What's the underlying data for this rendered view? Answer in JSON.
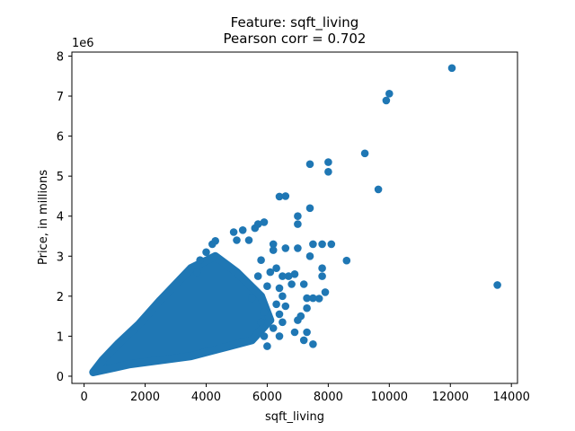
{
  "chart_data": {
    "type": "scatter",
    "title": "Feature: sqft_living",
    "subtitle": "Pearson corr = 0.702",
    "xlabel": "sqft_living",
    "ylabel": "Price, in millions",
    "y_offset_label": "1e6",
    "xlim": [
      -400,
      14200
    ],
    "ylim": [
      -180000,
      8100000
    ],
    "x_ticks": [
      0,
      2000,
      4000,
      6000,
      8000,
      10000,
      12000,
      14000
    ],
    "x_tick_labels": [
      "0",
      "2000",
      "4000",
      "6000",
      "8000",
      "10000",
      "12000",
      "14000"
    ],
    "y_ticks": [
      0,
      1000000,
      2000000,
      3000000,
      4000000,
      5000000,
      6000000,
      7000000,
      8000000
    ],
    "y_tick_labels": [
      "0",
      "1",
      "2",
      "3",
      "4",
      "5",
      "6",
      "7",
      "8"
    ],
    "grid": false,
    "point_color": "#1f77b4",
    "dense_region": [
      [
        300,
        100000
      ],
      [
        900,
        200000
      ],
      [
        1500,
        300000
      ],
      [
        2500,
        400000
      ],
      [
        3500,
        500000
      ],
      [
        4500,
        700000
      ],
      [
        5500,
        900000
      ],
      [
        6100,
        1400000
      ],
      [
        5800,
        2000000
      ],
      [
        5000,
        2600000
      ],
      [
        4300,
        3000000
      ],
      [
        3500,
        2700000
      ],
      [
        2500,
        1900000
      ],
      [
        1800,
        1300000
      ],
      [
        1100,
        800000
      ],
      [
        600,
        400000
      ]
    ],
    "outliers": [
      [
        12050,
        7700000
      ],
      [
        10000,
        7060000
      ],
      [
        9900,
        6890000
      ],
      [
        13540,
        2280000
      ],
      [
        9200,
        5570000
      ],
      [
        9640,
        4670000
      ],
      [
        8000,
        5350000
      ],
      [
        8000,
        5110000
      ],
      [
        7400,
        5300000
      ],
      [
        7400,
        4200000
      ],
      [
        6400,
        4490000
      ],
      [
        6600,
        4500000
      ],
      [
        7000,
        4000000
      ],
      [
        7000,
        3800000
      ],
      [
        8600,
        2890000
      ],
      [
        7800,
        3300000
      ],
      [
        8100,
        3300000
      ],
      [
        7800,
        2700000
      ],
      [
        7800,
        2500000
      ],
      [
        7900,
        2100000
      ],
      [
        7700,
        1940000
      ],
      [
        7500,
        1950000
      ],
      [
        7300,
        1950000
      ],
      [
        7300,
        1700000
      ],
      [
        7100,
        1500000
      ],
      [
        7000,
        3200000
      ],
      [
        6900,
        2550000
      ],
      [
        6700,
        2500000
      ],
      [
        6500,
        2500000
      ],
      [
        6800,
        2300000
      ],
      [
        7400,
        3000000
      ],
      [
        6600,
        3200000
      ],
      [
        6200,
        3300000
      ],
      [
        6200,
        3150000
      ],
      [
        6500,
        2000000
      ],
      [
        6900,
        1100000
      ],
      [
        7300,
        1100000
      ],
      [
        7500,
        800000
      ],
      [
        7200,
        900000
      ],
      [
        6500,
        1350000
      ],
      [
        6400,
        1550000
      ],
      [
        7500,
        3300000
      ],
      [
        7200,
        2300000
      ],
      [
        7000,
        1400000
      ],
      [
        5900,
        3850000
      ],
      [
        5700,
        3800000
      ],
      [
        5600,
        3700000
      ],
      [
        5200,
        3650000
      ],
      [
        4900,
        3600000
      ],
      [
        5000,
        3400000
      ],
      [
        5400,
        3400000
      ],
      [
        4300,
        3380000
      ],
      [
        4200,
        3300000
      ],
      [
        4000,
        3100000
      ],
      [
        3800,
        2900000
      ],
      [
        6400,
        2200000
      ],
      [
        6300,
        2700000
      ],
      [
        6100,
        2600000
      ],
      [
        6000,
        2250000
      ],
      [
        6300,
        1800000
      ],
      [
        6600,
        1750000
      ],
      [
        6400,
        1000000
      ],
      [
        6000,
        750000
      ],
      [
        5900,
        1000000
      ],
      [
        5500,
        1950000
      ],
      [
        5800,
        1350000
      ],
      [
        5900,
        1600000
      ],
      [
        6200,
        1200000
      ],
      [
        5700,
        2500000
      ],
      [
        5800,
        2900000
      ],
      [
        3700,
        2600000
      ]
    ]
  }
}
